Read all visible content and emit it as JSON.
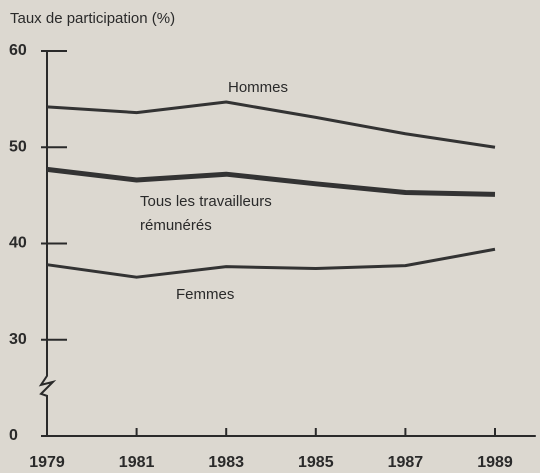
{
  "chart_data": {
    "type": "line",
    "title": "Taux de participation (%)",
    "x": [
      1979,
      1981,
      1983,
      1985,
      1987,
      1989
    ],
    "xlim": [
      1979,
      1990
    ],
    "xticks": [
      1979,
      1981,
      1983,
      1985,
      1987,
      1989
    ],
    "ylim": [
      0,
      60
    ],
    "yticks": [
      0,
      30,
      40,
      50,
      60
    ],
    "axis_break": true,
    "series": [
      {
        "label": [
          "Hommes"
        ],
        "color": "#333333",
        "values": [
          54.2,
          53.6,
          54.7,
          53.1,
          51.4,
          50.0
        ]
      },
      {
        "label": [
          "Tous les travailleurs",
          "rémunérés"
        ],
        "color": "#333333",
        "values": [
          47.7,
          46.6,
          47.2,
          46.2,
          45.3,
          45.1
        ]
      },
      {
        "label": [
          "Femmes"
        ],
        "color": "#333333",
        "values": [
          37.8,
          36.5,
          37.6,
          37.4,
          37.7,
          39.4
        ]
      }
    ]
  }
}
